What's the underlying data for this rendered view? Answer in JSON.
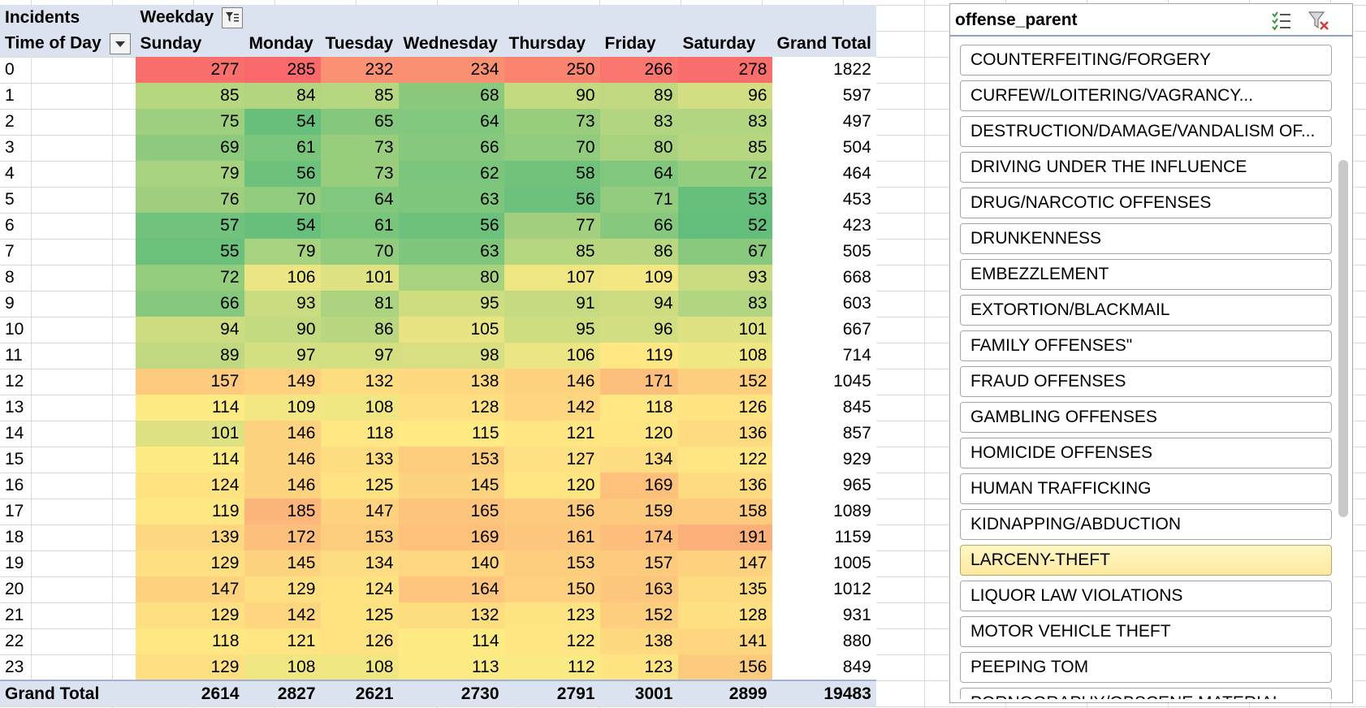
{
  "pivot": {
    "corner_label": "Incidents",
    "column_field": "Weekday",
    "row_field": "Time of Day",
    "days": [
      "Sunday",
      "Monday",
      "Tuesday",
      "Wednesday",
      "Thursday",
      "Friday",
      "Saturday"
    ],
    "grand_total_label": "Grand Total",
    "rows": [
      {
        "label": "0",
        "values": [
          277,
          285,
          232,
          234,
          250,
          266,
          278
        ],
        "total": 1822
      },
      {
        "label": "1",
        "values": [
          85,
          84,
          85,
          68,
          90,
          89,
          96
        ],
        "total": 597
      },
      {
        "label": "2",
        "values": [
          75,
          54,
          65,
          64,
          73,
          83,
          83
        ],
        "total": 497
      },
      {
        "label": "3",
        "values": [
          69,
          61,
          73,
          66,
          70,
          80,
          85
        ],
        "total": 504
      },
      {
        "label": "4",
        "values": [
          79,
          56,
          73,
          62,
          58,
          64,
          72
        ],
        "total": 464
      },
      {
        "label": "5",
        "values": [
          76,
          70,
          64,
          63,
          56,
          71,
          53
        ],
        "total": 453
      },
      {
        "label": "6",
        "values": [
          57,
          54,
          61,
          56,
          77,
          66,
          52
        ],
        "total": 423
      },
      {
        "label": "7",
        "values": [
          55,
          79,
          70,
          63,
          85,
          86,
          67
        ],
        "total": 505
      },
      {
        "label": "8",
        "values": [
          72,
          106,
          101,
          80,
          107,
          109,
          93
        ],
        "total": 668
      },
      {
        "label": "9",
        "values": [
          66,
          93,
          81,
          95,
          91,
          94,
          83
        ],
        "total": 603
      },
      {
        "label": "10",
        "values": [
          94,
          90,
          86,
          105,
          95,
          96,
          101
        ],
        "total": 667
      },
      {
        "label": "11",
        "values": [
          89,
          97,
          97,
          98,
          106,
          119,
          108
        ],
        "total": 714
      },
      {
        "label": "12",
        "values": [
          157,
          149,
          132,
          138,
          146,
          171,
          152
        ],
        "total": 1045
      },
      {
        "label": "13",
        "values": [
          114,
          109,
          108,
          128,
          142,
          118,
          126
        ],
        "total": 845
      },
      {
        "label": "14",
        "values": [
          101,
          146,
          118,
          115,
          121,
          120,
          136
        ],
        "total": 857
      },
      {
        "label": "15",
        "values": [
          114,
          146,
          133,
          153,
          127,
          134,
          122
        ],
        "total": 929
      },
      {
        "label": "16",
        "values": [
          124,
          146,
          125,
          145,
          120,
          169,
          136
        ],
        "total": 965
      },
      {
        "label": "17",
        "values": [
          119,
          185,
          147,
          165,
          156,
          159,
          158
        ],
        "total": 1089
      },
      {
        "label": "18",
        "values": [
          139,
          172,
          153,
          169,
          161,
          174,
          191
        ],
        "total": 1159
      },
      {
        "label": "19",
        "values": [
          129,
          145,
          134,
          140,
          153,
          157,
          147
        ],
        "total": 1005
      },
      {
        "label": "20",
        "values": [
          147,
          129,
          124,
          164,
          150,
          163,
          135
        ],
        "total": 1012
      },
      {
        "label": "21",
        "values": [
          129,
          142,
          125,
          132,
          123,
          152,
          128
        ],
        "total": 931
      },
      {
        "label": "22",
        "values": [
          118,
          121,
          126,
          114,
          122,
          138,
          141
        ],
        "total": 880
      },
      {
        "label": "23",
        "values": [
          129,
          108,
          108,
          113,
          112,
          123,
          156
        ],
        "total": 849
      }
    ],
    "totals": [
      2614,
      2827,
      2621,
      2730,
      2791,
      3001,
      2899
    ],
    "grand_total": 19483,
    "colors": {
      "low": "#63be7b",
      "mid": "#ffeb84",
      "high": "#f8696b",
      "header": "#dce3f0"
    }
  },
  "slicer": {
    "title": "offense_parent",
    "icons": [
      "multi-select-icon",
      "clear-filter-icon"
    ],
    "items": [
      {
        "label": "COUNTERFEITING/FORGERY",
        "selected": false
      },
      {
        "label": "CURFEW/LOITERING/VAGRANCY...",
        "selected": false
      },
      {
        "label": "DESTRUCTION/DAMAGE/VANDALISM OF...",
        "selected": false
      },
      {
        "label": "DRIVING UNDER THE INFLUENCE",
        "selected": false
      },
      {
        "label": "DRUG/NARCOTIC OFFENSES",
        "selected": false
      },
      {
        "label": "DRUNKENNESS",
        "selected": false
      },
      {
        "label": "EMBEZZLEMENT",
        "selected": false
      },
      {
        "label": "EXTORTION/BLACKMAIL",
        "selected": false
      },
      {
        "label": "FAMILY OFFENSES\"",
        "selected": false
      },
      {
        "label": "FRAUD OFFENSES",
        "selected": false
      },
      {
        "label": "GAMBLING OFFENSES",
        "selected": false
      },
      {
        "label": "HOMICIDE  OFFENSES",
        "selected": false
      },
      {
        "label": "HUMAN TRAFFICKING",
        "selected": false
      },
      {
        "label": "KIDNAPPING/ABDUCTION",
        "selected": false
      },
      {
        "label": "LARCENY-THEFT",
        "selected": true
      },
      {
        "label": "LIQUOR LAW VIOLATIONS",
        "selected": false
      },
      {
        "label": "MOTOR VEHICLE THEFT",
        "selected": false
      },
      {
        "label": "PEEPING TOM",
        "selected": false
      },
      {
        "label": "PORNOGRAPHY/OBSCENE MATERIAL",
        "selected": false
      }
    ]
  }
}
